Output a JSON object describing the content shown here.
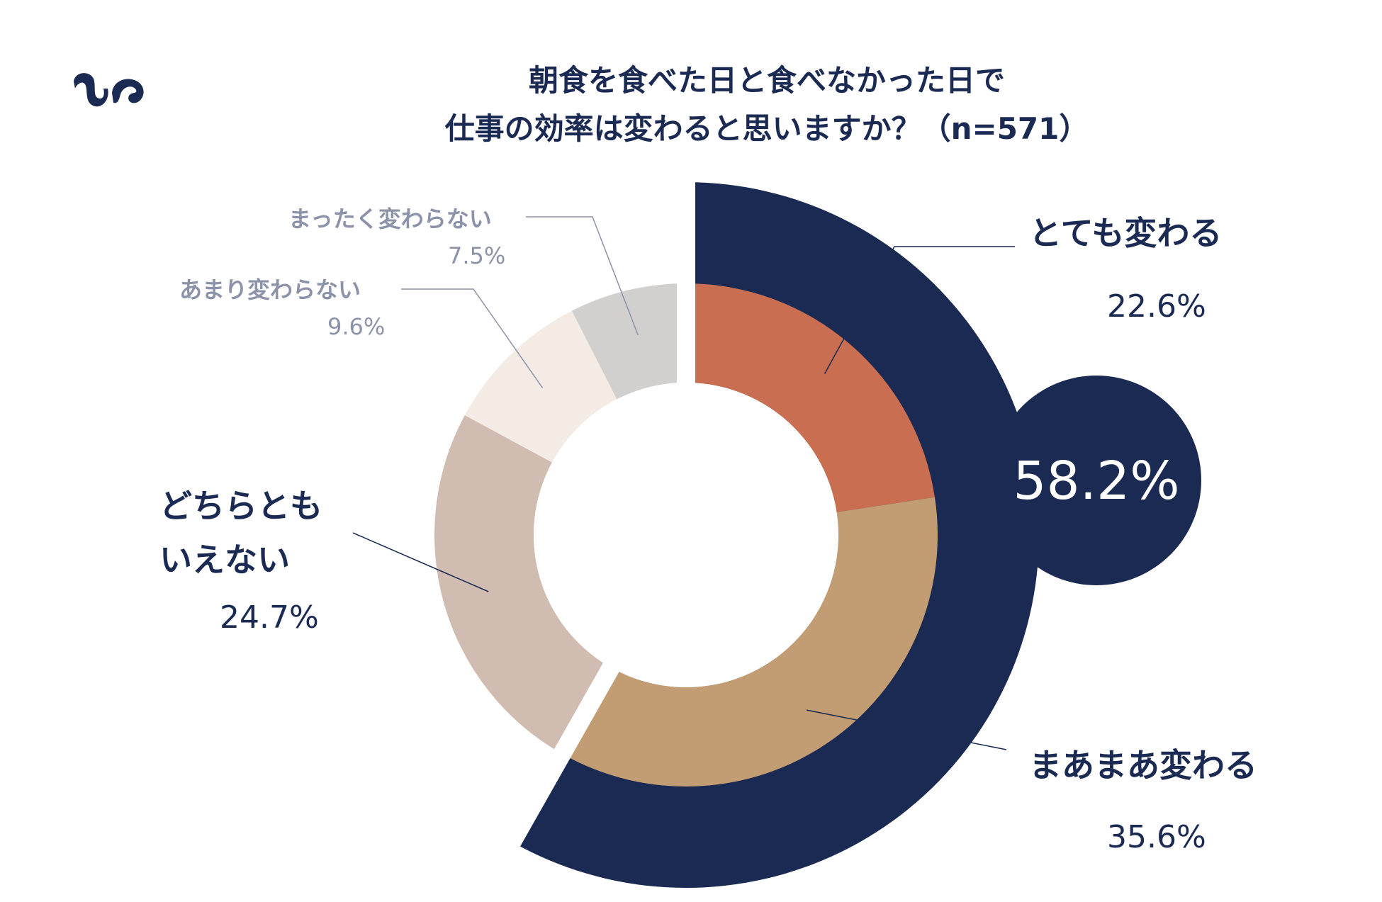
{
  "title_lines": [
    "朝食を食べた日と食べなかった日で",
    "仕事の効率は変わると思いますか？（n=571）"
  ],
  "colors": {
    "navy": "#1b2a52",
    "very_different": "#c96e50",
    "somewhat_different": "#c29c72",
    "neither": "#d0bcb1",
    "not_much": "#f3ebe4",
    "not_at_all": "#d1d0cf",
    "minor_text": "#8c93a8"
  },
  "chart_data": {
    "type": "pie",
    "subtype": "donut",
    "title": "朝食を食べた日と食べなかった日で仕事の効率は変わると思いますか？（n=571）",
    "unit": "%",
    "slices": [
      {
        "label": "とても変わる",
        "value": 22.6
      },
      {
        "label": "まあまあ変わる",
        "value": 35.6
      },
      {
        "label": "どちらともいえない",
        "value": 24.7
      },
      {
        "label": "あまり変わらない",
        "value": 9.6
      },
      {
        "label": "まったく変わらない",
        "value": 7.5
      }
    ],
    "highlight_group": {
      "members": [
        "とても変わる",
        "まあまあ変わる"
      ],
      "total": 58.2,
      "label": "58.2%"
    }
  },
  "labels": {
    "very_name": "とても変わる",
    "very_value": "22.6%",
    "somewhat_name": "まあまあ変わる",
    "somewhat_value": "35.6%",
    "neither_name_line1": "どちらとも",
    "neither_name_line2": "いえない",
    "neither_value": "24.7%",
    "not_much_name": "あまり変わらない",
    "not_much_value": "9.6%",
    "not_at_all_name": "まったく変わらない",
    "not_at_all_value": "7.5%",
    "total_highlight": "58.2%"
  },
  "logo_icon": "brand-logo-icon"
}
